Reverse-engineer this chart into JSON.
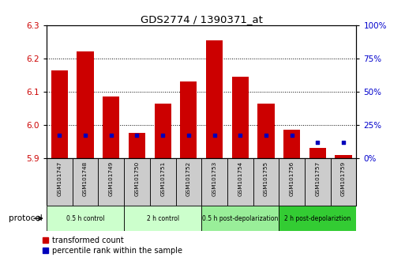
{
  "title": "GDS2774 / 1390371_at",
  "samples": [
    "GSM101747",
    "GSM101748",
    "GSM101749",
    "GSM101750",
    "GSM101751",
    "GSM101752",
    "GSM101753",
    "GSM101754",
    "GSM101755",
    "GSM101756",
    "GSM101757",
    "GSM101759"
  ],
  "transformed_count": [
    6.165,
    6.22,
    6.085,
    5.975,
    6.065,
    6.13,
    6.255,
    6.145,
    6.065,
    5.985,
    5.93,
    5.91
  ],
  "percentile_rank": [
    17,
    17,
    17,
    17,
    17,
    17,
    17,
    17,
    17,
    17,
    12,
    12
  ],
  "bar_bottom": 5.9,
  "ylim_left": [
    5.9,
    6.3
  ],
  "ylim_right": [
    0,
    100
  ],
  "yticks_left": [
    5.9,
    6.0,
    6.1,
    6.2,
    6.3
  ],
  "yticks_right": [
    0,
    25,
    50,
    75,
    100
  ],
  "ytick_labels_right": [
    "0%",
    "25%",
    "50%",
    "75%",
    "100%"
  ],
  "red_color": "#cc0000",
  "blue_color": "#0000bb",
  "bar_width": 0.65,
  "groups": [
    {
      "label": "0.5 h control",
      "start": 0,
      "end": 3,
      "color": "#ccffcc"
    },
    {
      "label": "2 h control",
      "start": 3,
      "end": 6,
      "color": "#ccffcc"
    },
    {
      "label": "0.5 h post-depolarization",
      "start": 6,
      "end": 9,
      "color": "#99ee99"
    },
    {
      "label": "2 h post-depolariztion",
      "start": 9,
      "end": 12,
      "color": "#33cc33"
    }
  ],
  "protocol_label": "protocol",
  "legend_red": "transformed count",
  "legend_blue": "percentile rank within the sample",
  "tick_label_color_left": "#cc0000",
  "tick_label_color_right": "#0000cc",
  "box_color": "#cccccc",
  "fig_width": 5.13,
  "fig_height": 3.54,
  "dpi": 100
}
